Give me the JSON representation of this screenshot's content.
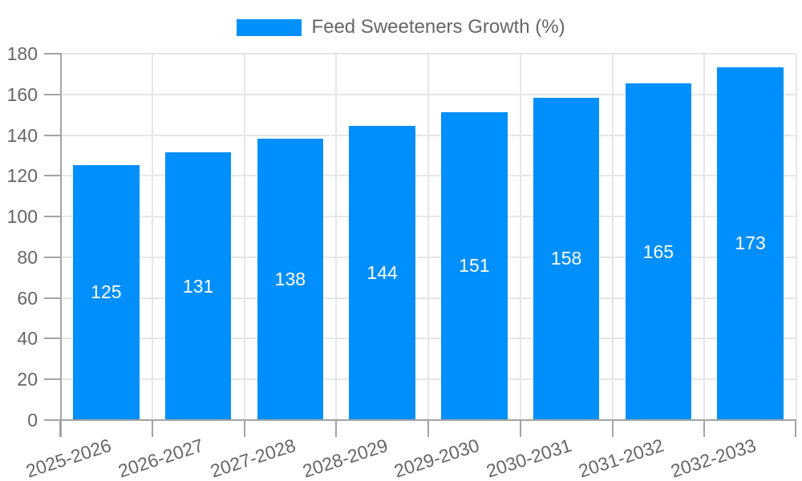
{
  "chart_data": {
    "type": "bar",
    "title": "Feed Sweeteners Growth (%)",
    "legend_position": "top",
    "categories": [
      "2025-2026",
      "2026-2027",
      "2027-2028",
      "2028-2029",
      "2029-2030",
      "2030-2031",
      "2031-2032",
      "2032-2033"
    ],
    "values": [
      125,
      131,
      138,
      144,
      151,
      158,
      165,
      173
    ],
    "ylim": [
      0,
      180
    ],
    "ytick_step": 20,
    "yticks": [
      0,
      20,
      40,
      60,
      80,
      100,
      120,
      140,
      160,
      180
    ],
    "grid": true,
    "bar_color": "#008FFB",
    "value_label_color": "#ffffff",
    "tick_label_color": "#666666",
    "legend_text_color": "#666666",
    "grid_color": "#e6e6e6",
    "axis_color": "#a3a3a3",
    "background": "#ffffff"
  }
}
